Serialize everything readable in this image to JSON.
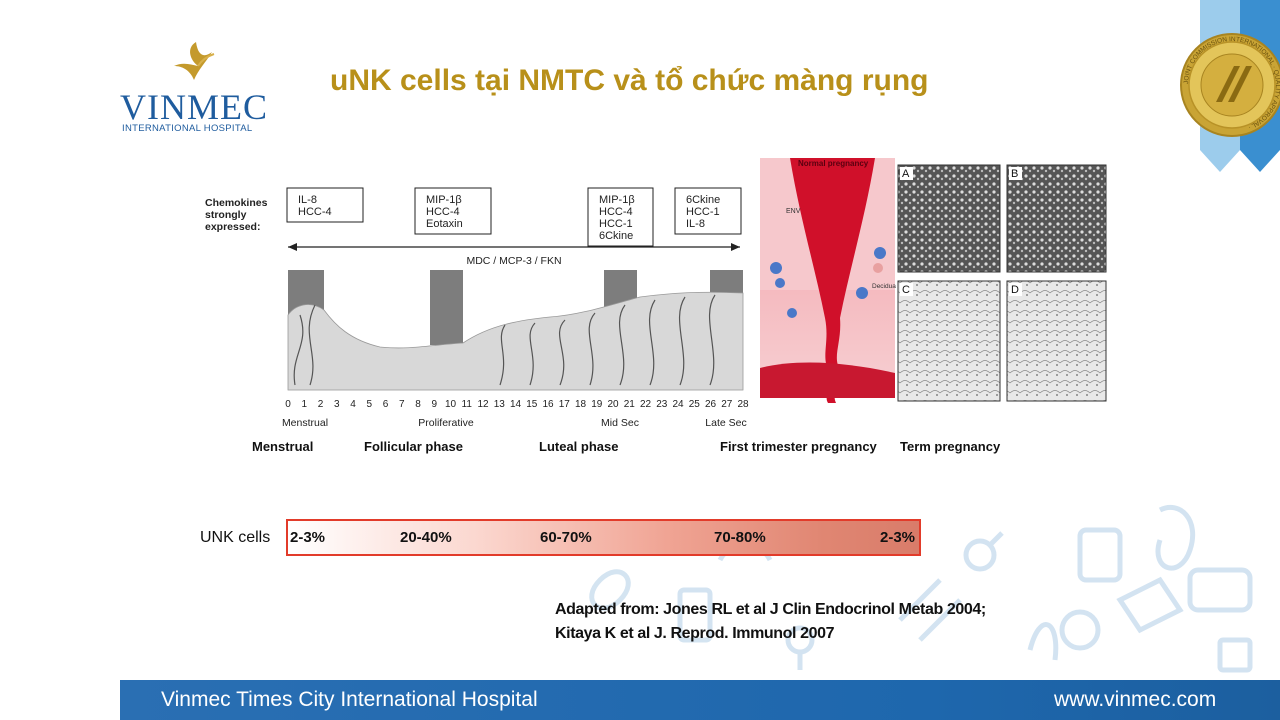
{
  "brand": {
    "wordmark": "VINMEC",
    "subtitle": "INTERNATIONAL HOSPITAL",
    "accent_color": "#b8901a",
    "blue": "#1f5c9e"
  },
  "slide_title": "uNK cells tại NMTC và tổ chức màng rụng",
  "badge": {
    "icon": "jci-quality-approval-seal-icon",
    "ring_text": "JOINT COMMISSION INTERNATIONAL · QUALITY APPROVAL ·"
  },
  "cycle_figure": {
    "side_label": [
      "Chemokines",
      "strongly",
      "expressed:"
    ],
    "boxes": [
      [
        "IL-8",
        "HCC-4"
      ],
      [
        "MIP-1β",
        "HCC-4",
        "Eotaxin"
      ],
      [
        "MIP-1β",
        "HCC-4",
        "HCC-1",
        "6Ckine"
      ],
      [
        "6Ckine",
        "HCC-1",
        "IL-8"
      ]
    ],
    "arrow_label": "MDC / MCP-3 / FKN",
    "days": [
      "0",
      "1",
      "2",
      "3",
      "4",
      "5",
      "6",
      "7",
      "8",
      "9",
      "10",
      "11",
      "12",
      "13",
      "14",
      "15",
      "16",
      "17",
      "18",
      "19",
      "20",
      "21",
      "22",
      "23",
      "24",
      "25",
      "26",
      "27",
      "28"
    ],
    "stage_labels": [
      "Menstrual",
      "Proliferative",
      "Mid Sec",
      "Late Sec"
    ]
  },
  "pregnancy_figure": {
    "top_label": "Normal pregnancy",
    "env_label": "ENV",
    "decidua_label": "Decidua",
    "panel_labels": [
      "A",
      "B",
      "C",
      "D"
    ]
  },
  "phases": [
    "Menstrual",
    "Follicular phase",
    "Luteal phase",
    "First trimester pregnancy",
    "Term pregnancy"
  ],
  "unk": {
    "label": "UNK cells",
    "values": [
      "2-3%",
      "20-40%",
      "60-70%",
      "70-80%",
      "2-3%"
    ]
  },
  "reference": {
    "line1": "Adapted from: Jones RL et al J Clin Endocrinol Metab 2004;",
    "line2": "Kitaya K et al J. Reprod. Immunol 2007"
  },
  "footer": {
    "hospital": "Vinmec Times City International Hospital",
    "website": "www.vinmec.com"
  }
}
